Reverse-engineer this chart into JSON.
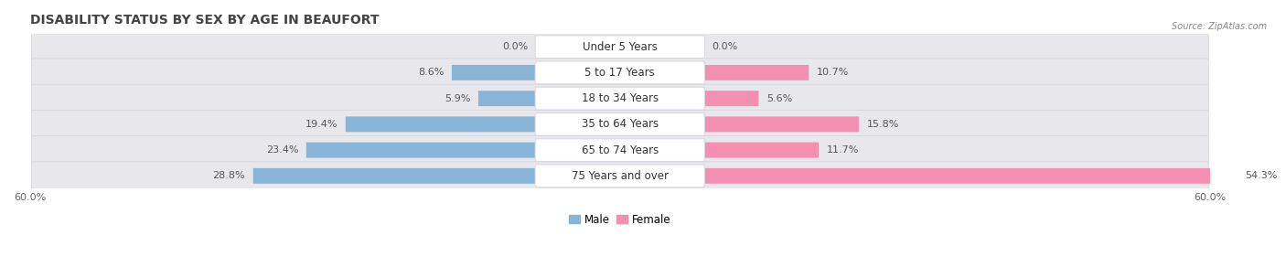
{
  "title": "DISABILITY STATUS BY SEX BY AGE IN BEAUFORT",
  "source": "Source: ZipAtlas.com",
  "categories": [
    "Under 5 Years",
    "5 to 17 Years",
    "18 to 34 Years",
    "35 to 64 Years",
    "65 to 74 Years",
    "75 Years and over"
  ],
  "male_values": [
    0.0,
    8.6,
    5.9,
    19.4,
    23.4,
    28.8
  ],
  "female_values": [
    0.0,
    10.7,
    5.6,
    15.8,
    11.7,
    54.3
  ],
  "male_color": "#88b4d8",
  "female_color": "#f48fb1",
  "row_bg_color": "#e8e8ec",
  "label_pill_color": "#ffffff",
  "axis_max": 60.0,
  "title_fontsize": 10,
  "label_fontsize": 8,
  "tick_fontsize": 8,
  "category_fontsize": 8.5,
  "value_color": "#555555",
  "title_color": "#444444",
  "background_color": "#ffffff"
}
